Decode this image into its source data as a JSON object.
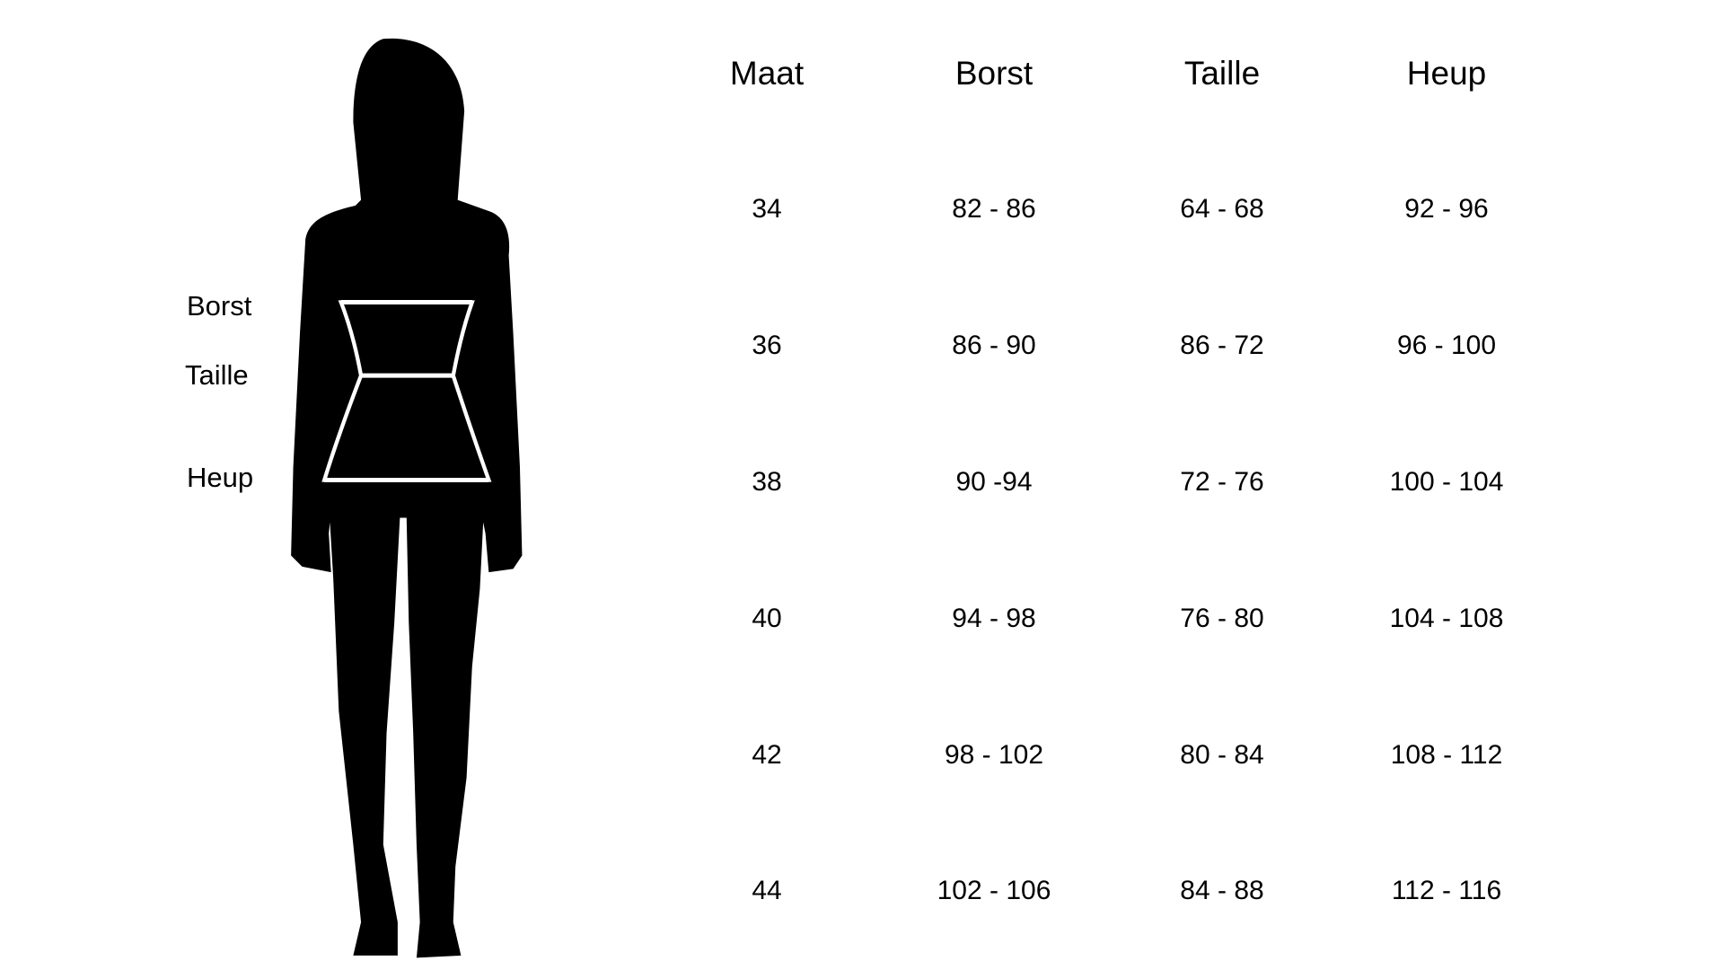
{
  "body_labels": [
    "Borst",
    "Taille",
    "Heup"
  ],
  "table": {
    "headers": [
      "Maat",
      "Borst",
      "Taille",
      "Heup"
    ],
    "rows": [
      [
        "34",
        "82 - 86",
        "64 - 68",
        "92 - 96"
      ],
      [
        "36",
        "86 - 90",
        "86 - 72",
        "96 - 100"
      ],
      [
        "38",
        "90 -94",
        "72 - 76",
        "100 - 104"
      ],
      [
        "40",
        "94 - 98",
        "76 - 80",
        "104 - 108"
      ],
      [
        "42",
        "98 - 102",
        "80 - 84",
        "108 - 112"
      ],
      [
        "44",
        "102 - 106",
        "84 - 88",
        "112 - 116"
      ]
    ]
  }
}
